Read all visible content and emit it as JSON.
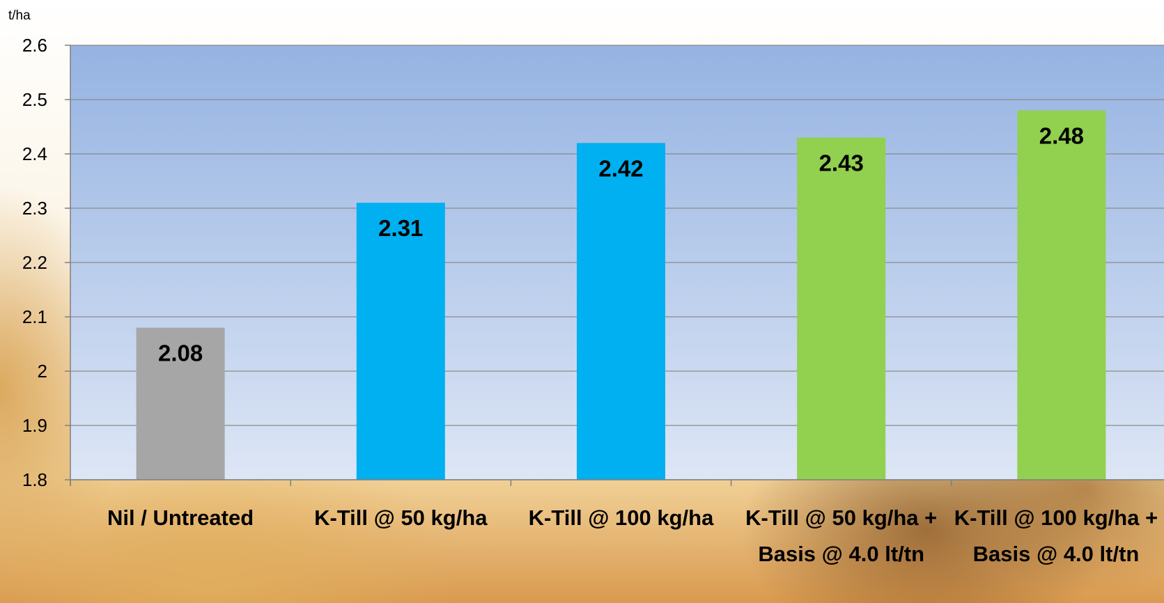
{
  "chart_data": {
    "type": "bar",
    "ylabel": "t/ha",
    "ylim": [
      1.8,
      2.6
    ],
    "yticks": [
      "1.8",
      "1.9",
      "2",
      "2.1",
      "2.2",
      "2.3",
      "2.4",
      "2.5",
      "2.6"
    ],
    "grid": true,
    "categories": [
      "Nil / Untreated",
      "K-Till @ 50 kg/ha",
      "K-Till @ 100 kg/ha",
      "K-Till @ 50 kg/ha + Basis @ 4.0 lt/tn",
      "K-Till @ 100 kg/ha + Basis @ 4.0 lt/tn"
    ],
    "values": [
      2.08,
      2.31,
      2.42,
      2.43,
      2.48
    ],
    "data_labels": [
      "2.08",
      "2.31",
      "2.42",
      "2.43",
      "2.48"
    ],
    "bar_colors": [
      "#a6a6a6",
      "#00b0f0",
      "#00b0f0",
      "#92d050",
      "#92d050"
    ],
    "plot_background": [
      "#95b3e2",
      "#dde6f5"
    ]
  }
}
